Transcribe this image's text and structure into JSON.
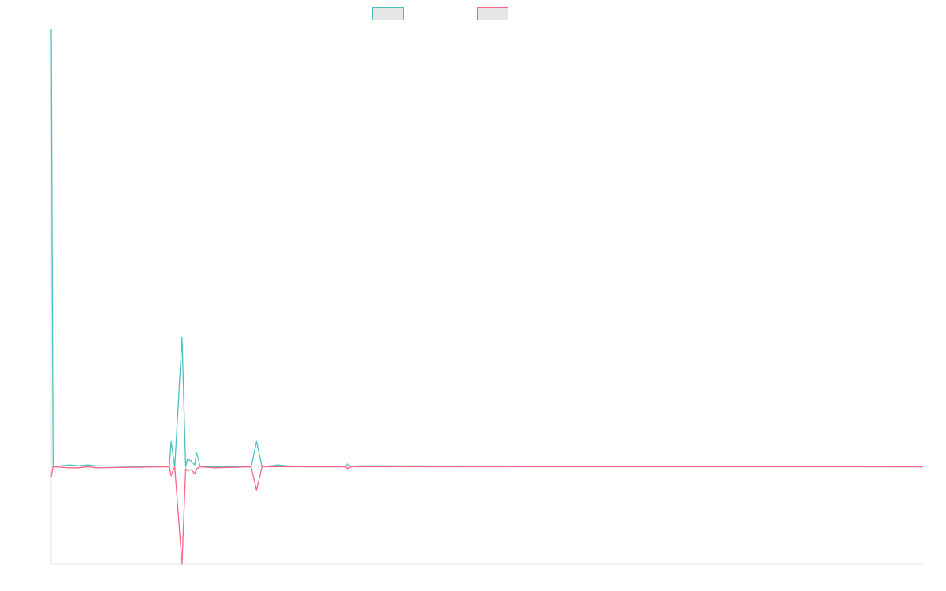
{
  "chart_data": {
    "type": "line",
    "title": "",
    "xlabel": "",
    "ylabel": "",
    "xlim": [
      0,
      480
    ],
    "ylim": [
      -1.0,
      4.5
    ],
    "grid": false,
    "legend_placement": "top-center",
    "series": [
      {
        "color": "#4bc0c0",
        "fill": "#e6e6e6",
        "points": [
          [
            0,
            4.5
          ],
          [
            1,
            0.0
          ],
          [
            10,
            0.02
          ],
          [
            15,
            0.01
          ],
          [
            20,
            0.02
          ],
          [
            25,
            0.01
          ],
          [
            65,
            0.0
          ],
          [
            66,
            0.26
          ],
          [
            68,
            0.0
          ],
          [
            72,
            1.33
          ],
          [
            74,
            0.0
          ],
          [
            75,
            0.08
          ],
          [
            77,
            0.06
          ],
          [
            79,
            0.02
          ],
          [
            80,
            0.15
          ],
          [
            82,
            0.0
          ],
          [
            110,
            0.0
          ],
          [
            113,
            0.26
          ],
          [
            116,
            0.0
          ],
          [
            125,
            0.02
          ],
          [
            130,
            0.01
          ],
          [
            140,
            0.0
          ],
          [
            162,
            0.0
          ],
          [
            163,
            0.03
          ],
          [
            165,
            0.0
          ],
          [
            170,
            0.01
          ],
          [
            175,
            0.01
          ],
          [
            480,
            0.0
          ]
        ]
      },
      {
        "color": "#ff6384",
        "fill": "#e6e6e6",
        "points": [
          [
            0,
            -0.1
          ],
          [
            1,
            0.0
          ],
          [
            10,
            -0.01
          ],
          [
            15,
            -0.01
          ],
          [
            20,
            0.0
          ],
          [
            25,
            -0.01
          ],
          [
            65,
            0.0
          ],
          [
            66,
            -0.09
          ],
          [
            68,
            0.0
          ],
          [
            72,
            -1.0
          ],
          [
            74,
            -0.02
          ],
          [
            75,
            -0.04
          ],
          [
            77,
            -0.03
          ],
          [
            79,
            -0.07
          ],
          [
            80,
            -0.02
          ],
          [
            82,
            0.0
          ],
          [
            90,
            -0.01
          ],
          [
            110,
            0.0
          ],
          [
            113,
            -0.24
          ],
          [
            116,
            0.0
          ],
          [
            125,
            0.0
          ],
          [
            162,
            0.0
          ],
          [
            163,
            -0.02
          ],
          [
            165,
            0.0
          ],
          [
            480,
            0.0
          ]
        ]
      }
    ]
  }
}
